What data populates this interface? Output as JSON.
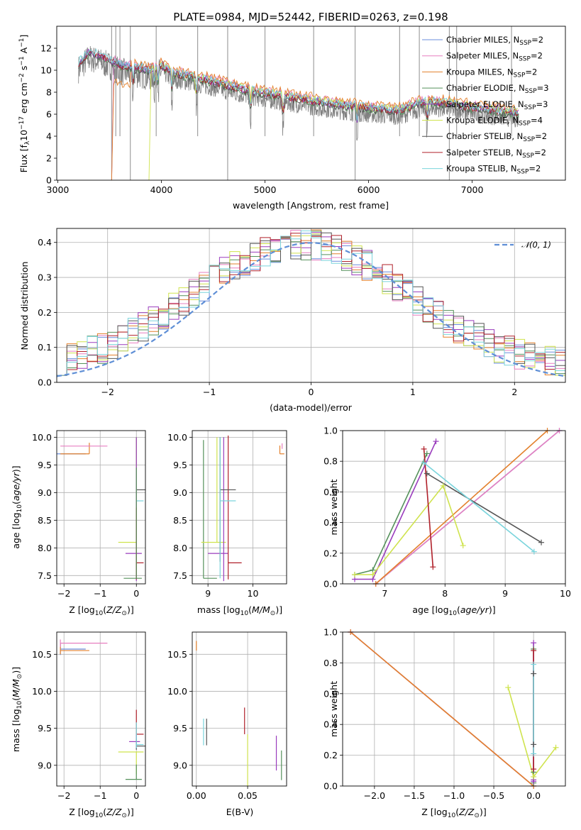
{
  "figure_title": "PLATE=0984, MJD=52442, FIBERID=0263, z=0.198",
  "colors": {
    "chabrier_miles": "#6a8cdc",
    "salpeter_miles": "#e77fc0",
    "kroupa_miles": "#e3802c",
    "chabrier_elodie": "#55915b",
    "salpeter_elodie": "#9a3cbd",
    "kroupa_elodie": "#cfe34e",
    "chabrier_stelib": "#555555",
    "salpeter_stelib": "#b0202a",
    "kroupa_stelib": "#7ad4dc",
    "spectrum": "#808080",
    "normal": "#5f8fd6"
  },
  "chart_data": [
    {
      "id": "spectrum",
      "type": "line",
      "title": "PLATE=0984, MJD=52442, FIBERID=0263, z=0.198",
      "xlabel": "wavelength [Angstrom, rest frame]",
      "ylabel": "Flux [f_λ 10^-17 erg cm^-2 s^-1 A^-1]",
      "xlim": [
        2990,
        7900
      ],
      "ylim": [
        0,
        14
      ],
      "xticks": [
        3000,
        4000,
        5000,
        6000,
        7000
      ],
      "yticks": [
        0,
        2,
        4,
        6,
        8,
        10,
        12
      ],
      "grid": false,
      "legend_position": "top-right",
      "legend": [
        "Chabrier MILES, N_SSP=2",
        "Salpeter MILES, N_SSP=2",
        "Kroupa MILES, N_SSP=2",
        "Chabrier ELODIE, N_SSP=3",
        "Salpeter ELODIE, N_SSP=3",
        "Kroupa ELODIE, N_SSP=4",
        "Chabrier STELIB, N_SSP=2",
        "Salpeter STELIB, N_SSP=2",
        "Kroupa STELIB, N_SSP=2"
      ],
      "model_continuum": {
        "x": [
          3200,
          3300,
          3400,
          3500,
          3600,
          3700,
          3800,
          3900,
          4000,
          4100,
          4300,
          4500,
          4700,
          4900,
          5100,
          5300,
          5500,
          5800,
          6100,
          6300,
          6450,
          6550,
          6700,
          6900,
          7100,
          7300,
          7500
        ],
        "y": [
          10.5,
          11.5,
          11.2,
          10.8,
          10.3,
          10.1,
          10.0,
          9.8,
          10.3,
          9.6,
          9.2,
          8.8,
          8.3,
          7.9,
          7.6,
          7.3,
          7.0,
          6.6,
          6.3,
          6.2,
          6.7,
          7.0,
          6.9,
          6.6,
          6.3,
          6.1,
          5.9
        ]
      },
      "model_cutoffs": {
        "miles_start": 3540,
        "elodie_start": 3900
      },
      "observed_range": [
        3200,
        7450
      ]
    },
    {
      "id": "residuals",
      "type": "line",
      "xlabel": "(data-model)/error",
      "ylabel": "Normed distribution",
      "xlim": [
        -2.5,
        2.5
      ],
      "ylim": [
        0,
        0.44
      ],
      "xticks": [
        -2,
        -1,
        0,
        1,
        2
      ],
      "yticks": [
        0.0,
        0.1,
        0.2,
        0.3,
        0.4
      ],
      "grid": true,
      "legend_position": "top-right",
      "legend": [
        "𝒩(0, 1)"
      ]
    },
    {
      "id": "age_vs_Z",
      "type": "scatter",
      "xlabel": "Z [log10(Z/Z⊙)]",
      "ylabel": "age  [log10(age/yr)]",
      "xlim": [
        -2.2,
        0.25
      ],
      "ylim": [
        7.35,
        10.12
      ],
      "xticks": [
        -2,
        -1,
        0
      ],
      "yticks": [
        7.5,
        8.0,
        8.5,
        9.0,
        9.5,
        10.0
      ],
      "grid": true,
      "points": [
        {
          "series": "chabrier_miles",
          "z": -2.1,
          "age": 9.7,
          "zerr": [
            2.1,
            0.7
          ],
          "ageerr": [
            0.0,
            0.0
          ]
        },
        {
          "series": "kroupa_miles",
          "z": -1.3,
          "age": 9.7,
          "zerr": [
            0.8,
            0.0
          ],
          "ageerr": [
            0.0,
            0.2
          ]
        },
        {
          "series": "salpeter_miles",
          "z": -0.8,
          "age": 9.84,
          "zerr": [
            1.3,
            0.0
          ],
          "ageerr": [
            0.0,
            0.0
          ]
        },
        {
          "series": "chabrier_stelib",
          "z": 0.0,
          "age": 9.05,
          "zerr": [
            0.0,
            0.25
          ],
          "ageerr": [
            1.6,
            0.95
          ]
        },
        {
          "series": "kroupa_stelib",
          "z": 0.0,
          "age": 8.85,
          "zerr": [
            0.0,
            0.2
          ],
          "ageerr": [
            1.4,
            1.15
          ]
        },
        {
          "series": "kroupa_elodie",
          "z": 0.0,
          "age": 8.1,
          "zerr": [
            0.5,
            0.0
          ],
          "ageerr": [
            0.6,
            1.9
          ]
        },
        {
          "series": "salpeter_elodie",
          "z": 0.0,
          "age": 7.9,
          "zerr": [
            0.3,
            0.15
          ],
          "ageerr": [
            0.5,
            2.1
          ]
        },
        {
          "series": "salpeter_stelib",
          "z": 0.0,
          "age": 7.73,
          "zerr": [
            0.0,
            0.2
          ],
          "ageerr": [
            0.3,
            1.0
          ]
        },
        {
          "series": "chabrier_elodie",
          "z": 0.0,
          "age": 7.45,
          "zerr": [
            0.35,
            0.15
          ],
          "ageerr": [
            0.0,
            2.0
          ]
        }
      ]
    },
    {
      "id": "age_vs_mass",
      "type": "scatter",
      "xlabel": "mass [log10(M/M⊙)]",
      "xlim": [
        8.65,
        10.75
      ],
      "ylim": [
        7.35,
        10.12
      ],
      "xticks": [
        9,
        10
      ],
      "yticks": [
        7.5,
        8.0,
        8.5,
        9.0,
        9.5,
        10.0
      ],
      "grid": true,
      "points": [
        {
          "series": "chabrier_elodie",
          "mass": 8.9,
          "age": 7.45,
          "masserr": [
            0.0,
            0.3
          ],
          "ageerr": [
            0.0,
            2.5
          ]
        },
        {
          "series": "kroupa_elodie",
          "mass": 9.2,
          "age": 8.1,
          "masserr": [
            0.35,
            0.2
          ],
          "ageerr": [
            0.0,
            1.9
          ]
        },
        {
          "series": "salpeter_elodie",
          "mass": 9.35,
          "age": 7.9,
          "masserr": [
            0.35,
            0.1
          ],
          "ageerr": [
            0.5,
            2.1
          ]
        },
        {
          "series": "salpeter_stelib",
          "mass": 9.45,
          "age": 7.73,
          "masserr": [
            0.0,
            0.3
          ],
          "ageerr": [
            0.3,
            2.3
          ]
        },
        {
          "series": "chabrier_stelib",
          "mass": 9.27,
          "age": 9.05,
          "masserr": [
            0.0,
            0.35
          ],
          "ageerr": [
            1.3,
            0.95
          ]
        },
        {
          "series": "kroupa_stelib",
          "mass": 9.27,
          "age": 8.85,
          "masserr": [
            0.0,
            0.35
          ],
          "ageerr": [
            1.4,
            1.15
          ]
        },
        {
          "series": "kroupa_miles",
          "mass": 10.6,
          "age": 9.7,
          "masserr": [
            0.0,
            0.1
          ],
          "ageerr": [
            0.0,
            0.15
          ]
        },
        {
          "series": "salpeter_miles",
          "mass": 10.65,
          "age": 9.84,
          "masserr": [
            0.0,
            0.0
          ],
          "ageerr": [
            0.05,
            0.05
          ]
        }
      ]
    },
    {
      "id": "massweight_vs_age",
      "type": "line",
      "xlabel": "age  [log10(age/yr)]",
      "ylabel": "mass weight",
      "xlim": [
        6.3,
        10.0
      ],
      "ylim": [
        0,
        1
      ],
      "xticks": [
        7,
        8,
        9,
        10
      ],
      "yticks": [
        0.0,
        0.2,
        0.4,
        0.6,
        0.8,
        1.0
      ],
      "grid": true,
      "series": [
        {
          "key": "chabrier_miles",
          "x": [
            6.85,
            9.9
          ],
          "y": [
            0.0,
            1.0
          ]
        },
        {
          "key": "salpeter_miles",
          "x": [
            6.85,
            9.9
          ],
          "y": [
            0.0,
            1.0
          ]
        },
        {
          "key": "kroupa_miles",
          "x": [
            6.85,
            9.7
          ],
          "y": [
            0.0,
            1.0
          ]
        },
        {
          "key": "chabrier_elodie",
          "x": [
            6.5,
            6.8,
            7.7
          ],
          "y": [
            0.06,
            0.09,
            0.85
          ]
        },
        {
          "key": "salpeter_elodie",
          "x": [
            6.5,
            6.8,
            7.85
          ],
          "y": [
            0.03,
            0.03,
            0.93
          ]
        },
        {
          "key": "kroupa_elodie",
          "x": [
            6.5,
            6.8,
            7.97,
            8.3
          ],
          "y": [
            0.06,
            0.06,
            0.64,
            0.25
          ]
        },
        {
          "key": "chabrier_stelib",
          "x": [
            7.7,
            9.6
          ],
          "y": [
            0.72,
            0.27
          ]
        },
        {
          "key": "salpeter_stelib",
          "x": [
            7.65,
            7.8
          ],
          "y": [
            0.88,
            0.11
          ]
        },
        {
          "key": "kroupa_stelib",
          "x": [
            7.65,
            9.48
          ],
          "y": [
            0.79,
            0.21
          ]
        }
      ]
    },
    {
      "id": "mass_vs_Z",
      "type": "scatter",
      "xlabel": "Z [log10(Z/Z⊙)]",
      "ylabel": "mass [log10(M/M⊙)]",
      "xlim": [
        -2.2,
        0.25
      ],
      "ylim": [
        8.72,
        10.8
      ],
      "xticks": [
        -2,
        -1,
        0
      ],
      "yticks": [
        9.0,
        9.5,
        10.0,
        10.5
      ],
      "grid": true,
      "points": [
        {
          "series": "chabrier_miles",
          "z": -2.1,
          "mass": 10.57,
          "zerr": [
            0.0,
            0.7
          ],
          "masserr": [
            0.08,
            0.08
          ]
        },
        {
          "series": "kroupa_miles",
          "z": -2.1,
          "mass": 10.55,
          "zerr": [
            0.0,
            0.8
          ],
          "masserr": [
            0.05,
            0.1
          ]
        },
        {
          "series": "salpeter_miles",
          "z": -2.1,
          "mass": 10.65,
          "zerr": [
            0.0,
            1.3
          ],
          "masserr": [
            0.05,
            0.05
          ]
        },
        {
          "series": "salpeter_stelib",
          "z": 0.0,
          "mass": 9.42,
          "zerr": [
            0.0,
            0.2
          ],
          "masserr": [
            0.12,
            0.33
          ]
        },
        {
          "series": "salpeter_elodie",
          "z": 0.0,
          "mass": 9.32,
          "zerr": [
            0.2,
            0.1
          ],
          "masserr": [
            0.1,
            0.1
          ]
        },
        {
          "series": "chabrier_stelib",
          "z": 0.0,
          "mass": 9.26,
          "zerr": [
            0.0,
            0.25
          ],
          "masserr": [
            0.05,
            0.1
          ]
        },
        {
          "series": "kroupa_stelib",
          "z": 0.0,
          "mass": 9.28,
          "zerr": [
            0.0,
            0.2
          ],
          "masserr": [
            0.05,
            0.3
          ]
        },
        {
          "series": "kroupa_elodie",
          "z": 0.0,
          "mass": 9.18,
          "zerr": [
            0.5,
            0.2
          ],
          "masserr": [
            0.3,
            0.0
          ]
        },
        {
          "series": "chabrier_elodie",
          "z": 0.0,
          "mass": 8.81,
          "zerr": [
            0.3,
            0.15
          ],
          "masserr": [
            0.0,
            0.2
          ]
        }
      ]
    },
    {
      "id": "mass_vs_ebv",
      "type": "scatter",
      "xlabel": "E(B-V)",
      "xlim": [
        -0.004,
        0.088
      ],
      "ylim": [
        8.72,
        10.8
      ],
      "xticks": [
        0.0,
        0.05
      ],
      "xticklabels": [
        "0.00",
        "0.05"
      ],
      "yticks": [
        9.0,
        9.5,
        10.0,
        10.5
      ],
      "grid": true,
      "points": [
        {
          "series": "kroupa_miles",
          "ebv": 0.0,
          "mass": 10.6,
          "masserr": [
            0.05,
            0.08
          ]
        },
        {
          "series": "kroupa_stelib",
          "ebv": 0.007,
          "mass": 9.45,
          "masserr": [
            0.18,
            0.18
          ]
        },
        {
          "series": "chabrier_stelib",
          "ebv": 0.01,
          "mass": 9.45,
          "masserr": [
            0.18,
            0.18
          ]
        },
        {
          "series": "salpeter_stelib",
          "ebv": 0.047,
          "mass": 9.6,
          "masserr": [
            0.18,
            0.18
          ]
        },
        {
          "series": "kroupa_elodie",
          "ebv": 0.05,
          "mass": 9.07,
          "masserr": [
            0.35,
            0.35
          ]
        },
        {
          "series": "salpeter_elodie",
          "ebv": 0.078,
          "mass": 9.05,
          "masserr": [
            0.12,
            0.35
          ]
        },
        {
          "series": "chabrier_elodie",
          "ebv": 0.083,
          "mass": 9.05,
          "masserr": [
            0.25,
            0.15
          ]
        }
      ]
    },
    {
      "id": "massweight_vs_Z",
      "type": "line",
      "xlabel": "Z [log10(Z/Z⊙)]",
      "ylabel": "mass weight",
      "xlim": [
        -2.4,
        0.4
      ],
      "ylim": [
        0,
        1
      ],
      "xticks": [
        -2.0,
        -1.5,
        -1.0,
        -0.5,
        0.0
      ],
      "xticklabels": [
        "−2.0",
        "−1.5",
        "−1.0",
        "−0.5",
        "0.0"
      ],
      "yticks": [
        0.0,
        0.2,
        0.4,
        0.6,
        0.8,
        1.0
      ],
      "grid": true,
      "series": [
        {
          "key": "chabrier_miles",
          "x": [
            -2.3,
            0.0
          ],
          "y": [
            1.0,
            0.0
          ]
        },
        {
          "key": "salpeter_miles",
          "x": [
            -2.3,
            0.0
          ],
          "y": [
            1.0,
            0.0
          ]
        },
        {
          "key": "kroupa_miles",
          "x": [
            -2.3,
            0.0
          ],
          "y": [
            1.0,
            0.0
          ]
        },
        {
          "key": "chabrier_elodie",
          "x": [
            0.0,
            0.0,
            0.0
          ],
          "y": [
            0.09,
            0.02,
            0.89
          ]
        },
        {
          "key": "salpeter_elodie",
          "x": [
            0.0,
            0.0,
            0.0
          ],
          "y": [
            0.03,
            0.04,
            0.93
          ]
        },
        {
          "key": "kroupa_elodie",
          "x": [
            -0.32,
            0.0,
            0.28
          ],
          "y": [
            0.64,
            0.06,
            0.25
          ]
        },
        {
          "key": "chabrier_stelib",
          "x": [
            0.0,
            0.0
          ],
          "y": [
            0.73,
            0.27
          ]
        },
        {
          "key": "salpeter_stelib",
          "x": [
            0.0,
            0.0
          ],
          "y": [
            0.88,
            0.11
          ]
        },
        {
          "key": "kroupa_stelib",
          "x": [
            0.0,
            0.0
          ],
          "y": [
            0.79,
            0.21
          ]
        }
      ]
    }
  ]
}
